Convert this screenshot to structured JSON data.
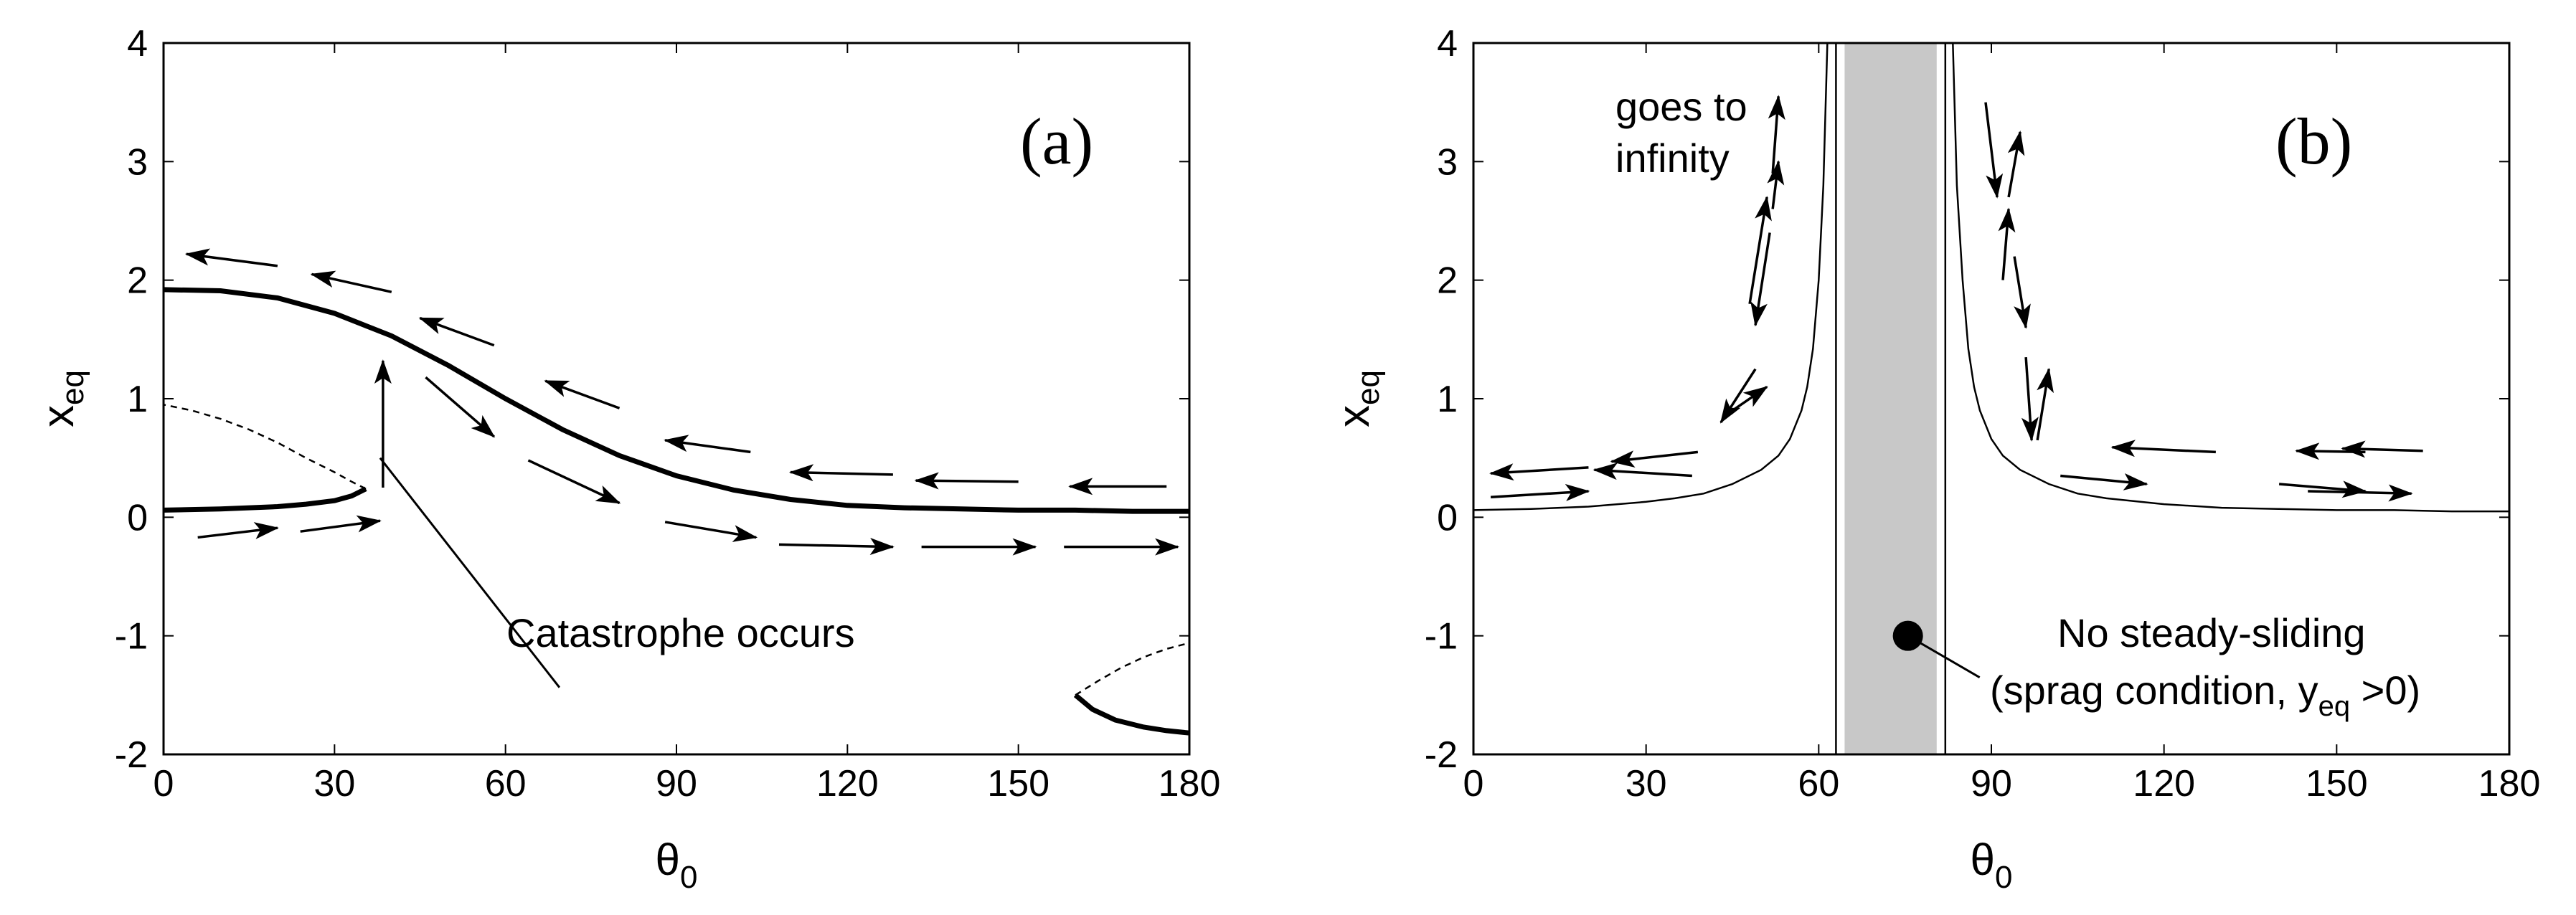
{
  "chart_data": [
    {
      "panel": "a",
      "type": "line",
      "panel_label": "(a)",
      "ylabel_main": "x",
      "ylabel_sub": "eq",
      "xlabel_main": "θ",
      "xlabel_sub": "0",
      "xlim": [
        0,
        180
      ],
      "ylim": [
        -2,
        4
      ],
      "xticks": [
        0,
        30,
        60,
        90,
        120,
        150,
        180
      ],
      "yticks": [
        -2,
        -1,
        0,
        1,
        2,
        3,
        4
      ],
      "grid": false,
      "annotation": {
        "text": "Catastrophe occurs",
        "point_to": [
          38,
          0.5
        ]
      },
      "series": [
        {
          "style": "solid-thick",
          "x": [
            0,
            10,
            20,
            30,
            40,
            50,
            60,
            70,
            80,
            90,
            100,
            110,
            120,
            130,
            140,
            150,
            160,
            170,
            180
          ],
          "y": [
            1.92,
            1.91,
            1.85,
            1.72,
            1.53,
            1.28,
            1.0,
            0.74,
            0.52,
            0.35,
            0.23,
            0.15,
            0.1,
            0.08,
            0.07,
            0.06,
            0.06,
            0.05,
            0.05
          ]
        },
        {
          "style": "solid-thick",
          "x": [
            0,
            10,
            20,
            25,
            30,
            33,
            35.5
          ],
          "y": [
            0.06,
            0.07,
            0.09,
            0.11,
            0.14,
            0.18,
            0.24
          ]
        },
        {
          "style": "dashed-thin",
          "x": [
            35.5,
            33,
            30,
            25,
            20,
            15,
            10,
            5,
            0
          ],
          "y": [
            0.24,
            0.3,
            0.38,
            0.5,
            0.63,
            0.74,
            0.83,
            0.9,
            0.95
          ]
        },
        {
          "style": "solid-thick",
          "x": [
            160,
            163,
            167,
            172,
            176,
            180
          ],
          "y": [
            -1.5,
            -1.62,
            -1.71,
            -1.77,
            -1.8,
            -1.82
          ]
        },
        {
          "style": "dashed-thin",
          "x": [
            160,
            164,
            168,
            172,
            176,
            180
          ],
          "y": [
            -1.5,
            -1.38,
            -1.27,
            -1.18,
            -1.11,
            -1.06
          ]
        }
      ],
      "arrows": [
        {
          "x1": 6,
          "y1": -0.17,
          "x2": 20,
          "y2": -0.09
        },
        {
          "x1": 24,
          "y1": -0.12,
          "x2": 38,
          "y2": -0.03
        },
        {
          "x1": 38.5,
          "y1": 0.25,
          "x2": 38.5,
          "y2": 1.32
        },
        {
          "x1": 46,
          "y1": 1.18,
          "x2": 58,
          "y2": 0.68
        },
        {
          "x1": 64,
          "y1": 0.48,
          "x2": 80,
          "y2": 0.12
        },
        {
          "x1": 88,
          "y1": -0.04,
          "x2": 104,
          "y2": -0.17
        },
        {
          "x1": 108,
          "y1": -0.23,
          "x2": 128,
          "y2": -0.25
        },
        {
          "x1": 133,
          "y1": -0.25,
          "x2": 153,
          "y2": -0.25
        },
        {
          "x1": 158,
          "y1": -0.25,
          "x2": 178,
          "y2": -0.25
        },
        {
          "x1": 176,
          "y1": 0.26,
          "x2": 159,
          "y2": 0.26
        },
        {
          "x1": 150,
          "y1": 0.3,
          "x2": 132,
          "y2": 0.31
        },
        {
          "x1": 128,
          "y1": 0.36,
          "x2": 110,
          "y2": 0.38
        },
        {
          "x1": 103,
          "y1": 0.55,
          "x2": 88,
          "y2": 0.65
        },
        {
          "x1": 80,
          "y1": 0.92,
          "x2": 67,
          "y2": 1.15
        },
        {
          "x1": 58,
          "y1": 1.45,
          "x2": 45,
          "y2": 1.68
        },
        {
          "x1": 40,
          "y1": 1.9,
          "x2": 26,
          "y2": 2.05
        },
        {
          "x1": 20,
          "y1": 2.12,
          "x2": 4,
          "y2": 2.22
        }
      ]
    },
    {
      "panel": "b",
      "type": "line",
      "panel_label": "(b)",
      "ylabel_main": "x",
      "ylabel_sub": "eq",
      "xlabel_main": "θ",
      "xlabel_sub": "0",
      "xlim": [
        0,
        180
      ],
      "ylim": [
        -2,
        4
      ],
      "xticks": [
        0,
        30,
        60,
        90,
        120,
        150,
        180
      ],
      "yticks": [
        -2,
        -1,
        0,
        1,
        2,
        3,
        4
      ],
      "grid": false,
      "shaded_band": {
        "x0": 64.5,
        "x1": 80.5,
        "color": "#c8c8c8"
      },
      "vertical_lines": [
        63,
        82
      ],
      "annotations": [
        {
          "text": "goes to",
          "text2": "infinity"
        },
        {
          "line1": "No steady-sliding",
          "line2_prefix": "(sprag condition, y",
          "line2_sub": "eq",
          "line2_suffix": " >0)",
          "point_to": [
            75.5,
            -1.0
          ]
        }
      ],
      "series": [
        {
          "style": "solid-thin",
          "x": [
            0,
            10,
            20,
            30,
            35,
            40,
            45,
            50,
            53,
            55,
            57,
            58,
            59,
            60,
            60.8,
            61.5
          ],
          "y": [
            0.06,
            0.07,
            0.09,
            0.13,
            0.16,
            0.2,
            0.28,
            0.4,
            0.52,
            0.66,
            0.9,
            1.1,
            1.42,
            2.0,
            2.8,
            4.0
          ]
        },
        {
          "style": "solid-thin",
          "x": [
            83.3,
            84,
            85,
            86,
            87,
            88,
            90,
            92,
            95,
            100,
            105,
            110,
            120,
            130,
            140,
            150,
            160,
            170,
            180
          ],
          "y": [
            4.0,
            2.8,
            2.0,
            1.42,
            1.1,
            0.9,
            0.66,
            0.52,
            0.4,
            0.28,
            0.2,
            0.16,
            0.11,
            0.08,
            0.07,
            0.06,
            0.06,
            0.05,
            0.05
          ]
        }
      ],
      "arrows": [
        {
          "x1": 3,
          "y1": 0.17,
          "x2": 20,
          "y2": 0.22
        },
        {
          "x1": 38,
          "y1": 0.35,
          "x2": 21,
          "y2": 0.4
        },
        {
          "x1": 39,
          "y1": 0.55,
          "x2": 24,
          "y2": 0.47
        },
        {
          "x1": 20,
          "y1": 0.42,
          "x2": 3,
          "y2": 0.37
        },
        {
          "x1": 45,
          "y1": 0.9,
          "x2": 51,
          "y2": 1.1
        },
        {
          "x1": 49,
          "y1": 1.25,
          "x2": 43,
          "y2": 0.8
        },
        {
          "x1": 48,
          "y1": 1.8,
          "x2": 51,
          "y2": 2.7
        },
        {
          "x1": 51.5,
          "y1": 2.4,
          "x2": 49,
          "y2": 1.62
        },
        {
          "x1": 52,
          "y1": 2.6,
          "x2": 53,
          "y2": 3.0
        },
        {
          "x1": 52,
          "y1": 2.9,
          "x2": 53,
          "y2": 3.55
        },
        {
          "x1": 89,
          "y1": 3.5,
          "x2": 91,
          "y2": 2.7
        },
        {
          "x1": 93,
          "y1": 2.7,
          "x2": 95,
          "y2": 3.25
        },
        {
          "x1": 92,
          "y1": 2.0,
          "x2": 93,
          "y2": 2.6
        },
        {
          "x1": 94,
          "y1": 2.2,
          "x2": 96,
          "y2": 1.6
        },
        {
          "x1": 96,
          "y1": 1.35,
          "x2": 97,
          "y2": 0.65
        },
        {
          "x1": 98,
          "y1": 0.65,
          "x2": 100,
          "y2": 1.25
        },
        {
          "x1": 102,
          "y1": 0.35,
          "x2": 117,
          "y2": 0.28
        },
        {
          "x1": 129,
          "y1": 0.55,
          "x2": 111,
          "y2": 0.59
        },
        {
          "x1": 155,
          "y1": 0.55,
          "x2": 143,
          "y2": 0.56
        },
        {
          "x1": 140,
          "y1": 0.28,
          "x2": 155,
          "y2": 0.22
        },
        {
          "x1": 165,
          "y1": 0.56,
          "x2": 151,
          "y2": 0.58
        },
        {
          "x1": 145,
          "y1": 0.22,
          "x2": 163,
          "y2": 0.2
        }
      ]
    }
  ]
}
